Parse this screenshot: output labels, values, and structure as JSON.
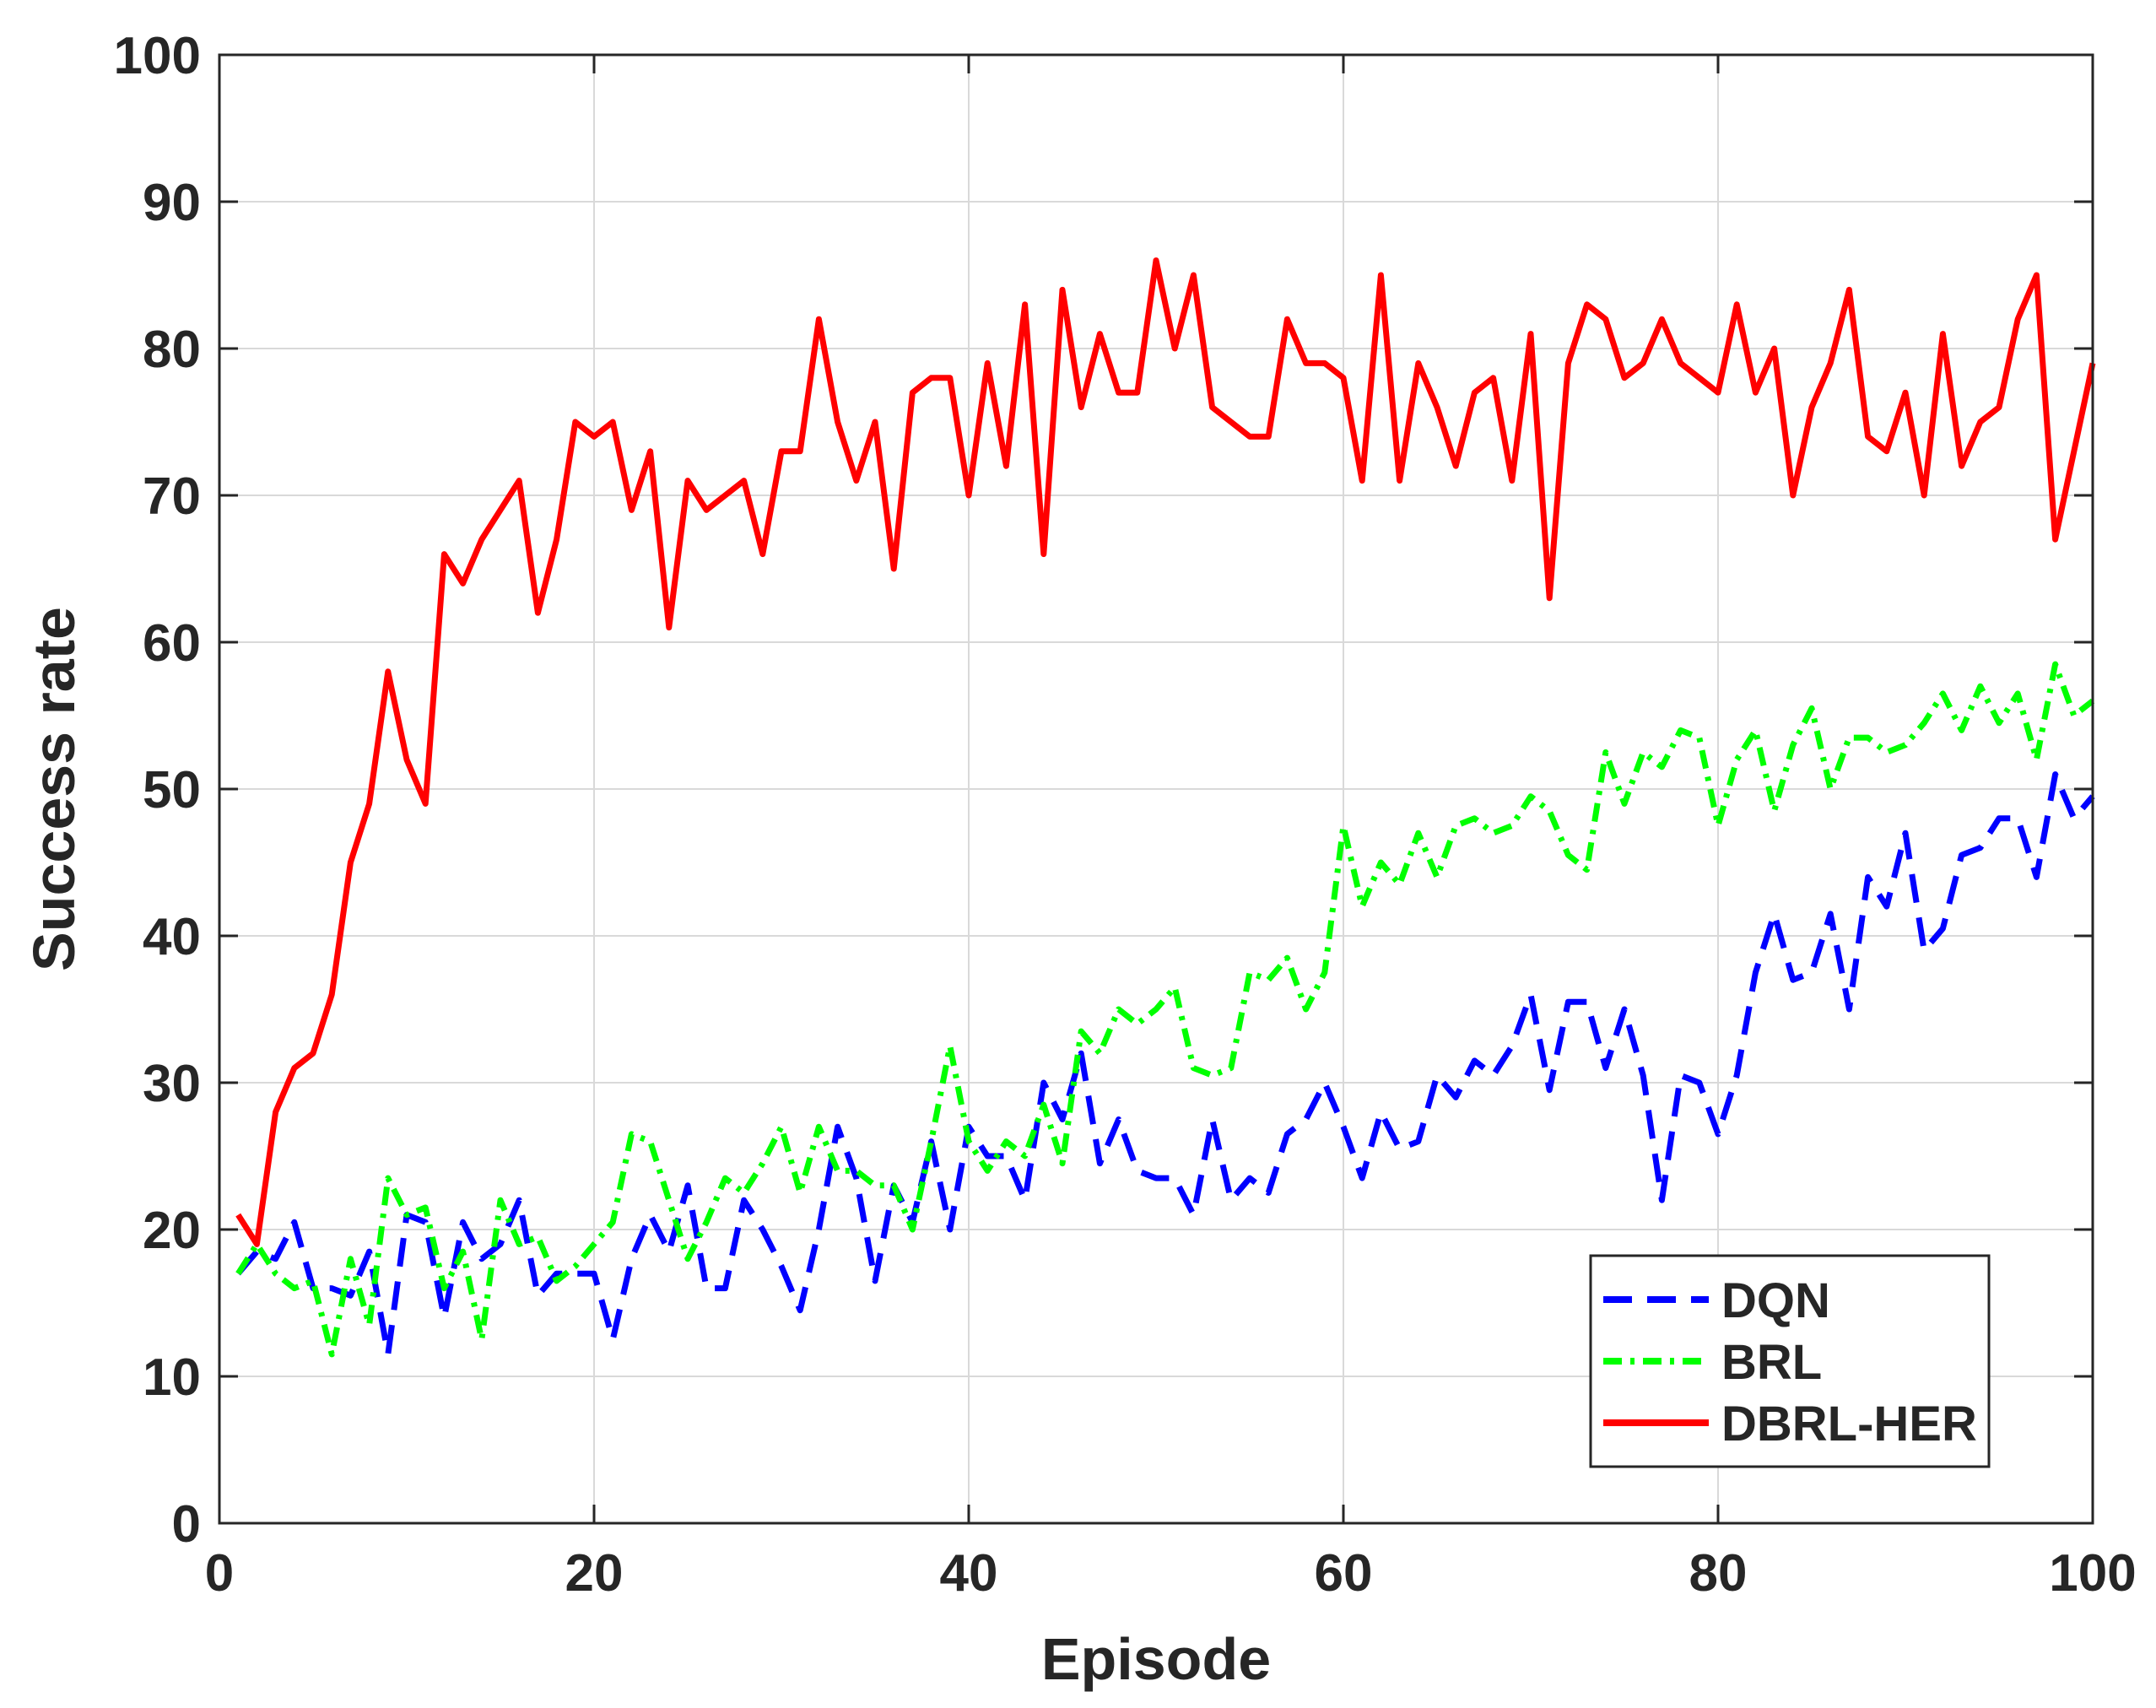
{
  "chart_data": {
    "type": "line",
    "title": "",
    "xlabel": "Episode",
    "ylabel": "Success rate",
    "xlim": [
      0,
      100
    ],
    "ylim": [
      0,
      100
    ],
    "xticks": [
      0,
      20,
      40,
      60,
      80,
      100
    ],
    "yticks": [
      0,
      10,
      20,
      30,
      40,
      50,
      60,
      70,
      80,
      90,
      100
    ],
    "xtick_labels": [
      "0",
      "20",
      "40",
      "60",
      "80",
      "100"
    ],
    "ytick_labels": [
      "0",
      "10",
      "20",
      "30",
      "40",
      "50",
      "60",
      "70",
      "80",
      "90",
      "100"
    ],
    "grid": true,
    "legend_position": "bottom-right",
    "x": [
      1,
      2,
      3,
      4,
      5,
      6,
      7,
      8,
      9,
      10,
      11,
      12,
      13,
      14,
      15,
      16,
      17,
      18,
      19,
      20,
      21,
      22,
      23,
      24,
      25,
      26,
      27,
      28,
      29,
      30,
      31,
      32,
      33,
      34,
      35,
      36,
      37,
      38,
      39,
      40,
      41,
      42,
      43,
      44,
      45,
      46,
      47,
      48,
      49,
      50,
      51,
      52,
      53,
      54,
      55,
      56,
      57,
      58,
      59,
      60,
      61,
      62,
      63,
      64,
      65,
      66,
      67,
      68,
      69,
      70,
      71,
      72,
      73,
      74,
      75,
      76,
      77,
      78,
      79,
      80,
      81,
      82,
      83,
      84,
      85,
      86,
      87,
      88,
      89,
      90,
      91,
      92,
      93,
      94,
      95,
      96,
      97,
      98,
      99,
      100
    ],
    "series": [
      {
        "name": "DQN",
        "color": "#0000ff",
        "style": "dashed",
        "values": [
          17,
          18.5,
          18,
          20.5,
          16,
          16,
          15.5,
          18.5,
          11.5,
          21,
          20.5,
          14,
          20.5,
          18,
          19,
          22,
          15.5,
          17,
          17,
          17,
          12.5,
          18,
          21,
          18.5,
          23,
          16,
          16,
          22,
          20,
          17.5,
          14.5,
          20,
          27,
          23.5,
          16.5,
          23,
          20.5,
          26,
          20,
          27,
          25,
          25,
          22,
          30,
          27.5,
          32,
          24.5,
          27.5,
          24,
          23.5,
          23.5,
          21,
          27.5,
          22,
          23.5,
          22.5,
          26.5,
          27.5,
          30,
          27,
          23.5,
          28,
          25.5,
          26,
          30.5,
          29,
          31.5,
          30.5,
          32.5,
          36,
          29.5,
          35.5,
          35.5,
          31,
          35,
          30.5,
          22,
          30.5,
          30,
          26.5,
          30.5,
          37.5,
          41.5,
          37,
          37.5,
          41.5,
          35,
          44,
          42,
          47,
          39,
          40.5,
          45.5,
          46,
          48,
          48,
          44,
          51,
          48,
          49.5
        ]
      },
      {
        "name": "BRL",
        "color": "#00ff00",
        "style": "dashdot",
        "values": [
          17,
          19,
          17,
          16,
          16.5,
          11.5,
          18,
          13.5,
          23.5,
          21,
          21.5,
          16,
          18.5,
          12.5,
          22,
          19,
          19.5,
          16.5,
          17.5,
          19,
          20.5,
          26.5,
          26,
          22,
          18,
          20.5,
          23.5,
          22.5,
          24.5,
          27,
          22.5,
          27,
          24,
          24,
          23,
          23,
          20,
          26,
          32.5,
          26,
          24,
          26,
          25,
          28.5,
          24.5,
          33.5,
          32,
          35,
          34,
          35,
          36.5,
          31,
          30.5,
          31,
          37.5,
          37,
          38.5,
          35,
          37.5,
          47.5,
          42,
          45,
          43.5,
          47,
          44,
          47.5,
          48,
          47,
          47.5,
          49.5,
          48.5,
          45.5,
          44.5,
          52.5,
          49,
          52.5,
          51.5,
          54,
          53.5,
          47.5,
          52,
          54,
          48.5,
          53,
          55.5,
          50,
          53.5,
          53.5,
          52.5,
          53,
          54.5,
          56.5,
          54,
          57,
          54.5,
          56.5,
          52,
          58.5,
          55,
          56
        ]
      },
      {
        "name": "DBRL-HER",
        "color": "#ff0000",
        "style": "solid",
        "values": [
          21,
          19,
          28,
          31,
          32,
          36,
          45,
          49,
          58,
          52,
          49,
          66,
          64,
          67,
          69,
          71,
          62,
          67,
          75,
          74,
          75,
          69,
          73,
          61,
          71,
          69,
          70,
          71,
          66,
          73,
          73,
          82,
          75,
          71,
          75,
          65,
          77,
          78,
          78,
          70,
          79,
          72,
          83,
          66,
          84,
          76,
          81,
          77,
          77,
          86,
          80,
          85,
          76,
          75,
          74,
          74,
          82,
          79,
          79,
          78,
          71,
          85,
          71,
          79,
          76,
          72,
          77,
          78,
          71,
          81,
          63,
          79,
          83,
          82,
          78,
          79,
          82,
          79,
          78,
          77,
          83,
          77,
          80,
          70,
          76,
          79,
          84,
          74,
          73,
          77,
          70,
          81,
          72,
          75,
          76,
          82,
          85,
          67,
          73,
          79
        ]
      }
    ]
  }
}
